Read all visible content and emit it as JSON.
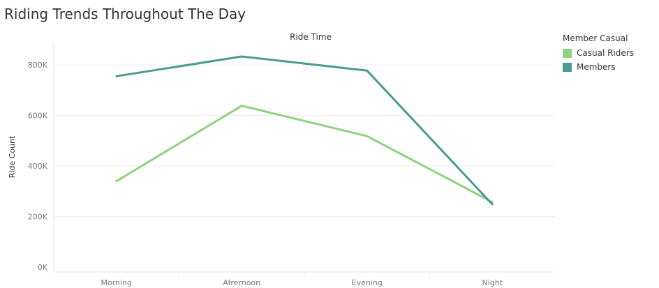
{
  "chart_data": {
    "type": "line",
    "title": "Riding Trends Throughout The Day",
    "column_header": "Ride Time",
    "xlabel": "",
    "ylabel": "Ride Count",
    "categories": [
      "Morning",
      "Afrernoon",
      "Evening",
      "Night"
    ],
    "y_ticks": [
      0,
      200000,
      400000,
      600000,
      800000
    ],
    "y_tick_labels": [
      "0K",
      "200K",
      "400K",
      "600K",
      "800K"
    ],
    "ylim": [
      0,
      880000
    ],
    "grid": true,
    "legend": {
      "title": "Member Casual",
      "placement": "top-right"
    },
    "series": [
      {
        "name": "Casual Riders",
        "color": "#8fd17e",
        "values": [
          340000,
          638000,
          518000,
          257000
        ]
      },
      {
        "name": "Members",
        "color": "#4a9a8f",
        "values": [
          755000,
          833000,
          777000,
          248000
        ]
      }
    ]
  }
}
